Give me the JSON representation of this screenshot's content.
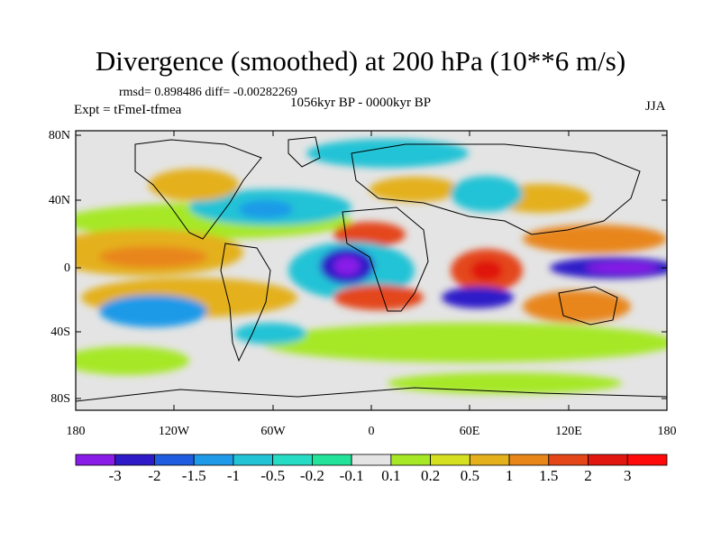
{
  "title": "Divergence (smoothed) at 200 hPa (10**6 m/s)",
  "stats": "rmsd= 0.898486  diff= -0.00282269",
  "period": "1056kyr BP - 0000kyr BP",
  "experiment": "Expt = tFmeI-tfmea",
  "season": "JJA",
  "lat_ticks": [
    "80N",
    "40N",
    "0",
    "40S",
    "80S"
  ],
  "lon_ticks": [
    "180",
    "120W",
    "60W",
    "0",
    "60E",
    "120E",
    "180"
  ],
  "colorbar": {
    "labels": [
      "-3",
      "-2",
      "-1.5",
      "-1",
      "-0.5",
      "-0.2",
      "-0.1",
      "0.1",
      "0.2",
      "0.5",
      "1",
      "1.5",
      "2",
      "3"
    ],
    "colors": [
      "#8a1ce8",
      "#2f1ac8",
      "#1f5ce0",
      "#1e9ae8",
      "#23c3d6",
      "#27dcc5",
      "#23e39a",
      "#e4e4e4",
      "#a6e825",
      "#d4e020",
      "#e4b01c",
      "#e8861a",
      "#e4461a",
      "#e0160f",
      "#ff0a0a"
    ]
  }
}
